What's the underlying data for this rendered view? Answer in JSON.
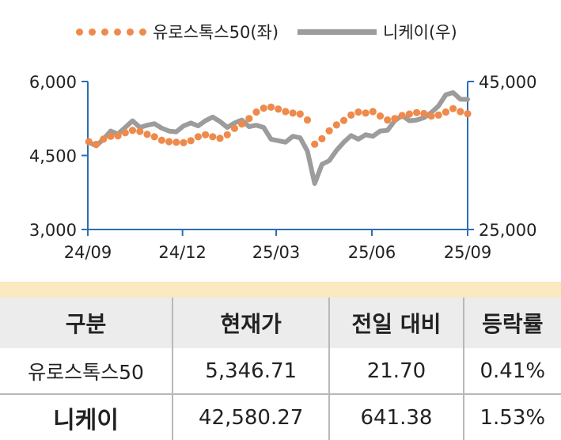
{
  "legend": {
    "series_1": "유로스톡스50(좌)",
    "series_2": "니케이(우)"
  },
  "colors": {
    "eurostoxx": "#ee8a4b",
    "nikkei": "#9c9c9c",
    "axis": "#2e6db4",
    "table_header_bg": "#ececec",
    "table_band": "#fbe9bf"
  },
  "chart_data": {
    "type": "line",
    "x_ticks": [
      "24/09",
      "24/12",
      "25/03",
      "25/06",
      "25/09"
    ],
    "y_left": {
      "ticks": [
        "3,000",
        "4,500",
        "6,000"
      ],
      "range": [
        3000,
        6000
      ]
    },
    "y_right": {
      "ticks": [
        "25,000",
        "45,000"
      ],
      "range": [
        25000,
        45000
      ]
    },
    "series": [
      {
        "name": "유로스톡스50(좌)",
        "axis": "left",
        "style": "dotted",
        "points": [
          [
            "24/09/02",
            4780
          ],
          [
            "24/09/09",
            4725
          ],
          [
            "24/09/16",
            4830
          ],
          [
            "24/09/23",
            4890
          ],
          [
            "24/09/30",
            4900
          ],
          [
            "24/10/07",
            4960
          ],
          [
            "24/10/14",
            5010
          ],
          [
            "24/10/21",
            4990
          ],
          [
            "24/10/28",
            4930
          ],
          [
            "24/11/04",
            4880
          ],
          [
            "24/11/11",
            4810
          ],
          [
            "24/11/18",
            4780
          ],
          [
            "24/11/25",
            4770
          ],
          [
            "24/12/02",
            4760
          ],
          [
            "24/12/09",
            4800
          ],
          [
            "24/12/16",
            4880
          ],
          [
            "24/12/23",
            4920
          ],
          [
            "24/12/30",
            4880
          ],
          [
            "25/01/06",
            4850
          ],
          [
            "25/01/13",
            4920
          ],
          [
            "25/01/20",
            5050
          ],
          [
            "25/01/27",
            5140
          ],
          [
            "25/02/03",
            5250
          ],
          [
            "25/02/10",
            5380
          ],
          [
            "25/02/17",
            5460
          ],
          [
            "25/02/24",
            5480
          ],
          [
            "25/03/03",
            5440
          ],
          [
            "25/03/10",
            5390
          ],
          [
            "25/03/17",
            5360
          ],
          [
            "25/03/24",
            5340
          ],
          [
            "25/03/31",
            5220
          ],
          [
            "25/04/07",
            4730
          ],
          [
            "25/04/14",
            4840
          ],
          [
            "25/04/21",
            5000
          ],
          [
            "25/04/28",
            5120
          ],
          [
            "25/05/05",
            5210
          ],
          [
            "25/05/12",
            5320
          ],
          [
            "25/05/19",
            5380
          ],
          [
            "25/05/26",
            5360
          ],
          [
            "25/06/02",
            5390
          ],
          [
            "25/06/09",
            5300
          ],
          [
            "25/06/16",
            5220
          ],
          [
            "25/06/23",
            5250
          ],
          [
            "25/06/30",
            5310
          ],
          [
            "25/07/07",
            5340
          ],
          [
            "25/07/14",
            5370
          ],
          [
            "25/07/21",
            5350
          ],
          [
            "25/07/28",
            5300
          ],
          [
            "25/08/04",
            5320
          ],
          [
            "25/08/11",
            5380
          ],
          [
            "25/08/18",
            5450
          ],
          [
            "25/08/25",
            5390
          ],
          [
            "25/09/01",
            5346.71
          ]
        ]
      },
      {
        "name": "니케이(우)",
        "axis": "right",
        "style": "line",
        "points": [
          [
            "24/09/02",
            36800
          ],
          [
            "24/09/09",
            36300
          ],
          [
            "24/09/16",
            37200
          ],
          [
            "24/09/23",
            38300
          ],
          [
            "24/09/30",
            37900
          ],
          [
            "24/10/07",
            38800
          ],
          [
            "24/10/14",
            39700
          ],
          [
            "24/10/21",
            38800
          ],
          [
            "24/10/28",
            39100
          ],
          [
            "24/11/04",
            39300
          ],
          [
            "24/11/11",
            38700
          ],
          [
            "24/11/18",
            38300
          ],
          [
            "24/11/25",
            38200
          ],
          [
            "24/12/02",
            39000
          ],
          [
            "24/12/09",
            39400
          ],
          [
            "24/12/16",
            39000
          ],
          [
            "24/12/23",
            39700
          ],
          [
            "24/12/30",
            40200
          ],
          [
            "25/01/06",
            39600
          ],
          [
            "25/01/13",
            38800
          ],
          [
            "25/01/20",
            39400
          ],
          [
            "25/01/27",
            39800
          ],
          [
            "25/02/03",
            38900
          ],
          [
            "25/02/10",
            39100
          ],
          [
            "25/02/17",
            38800
          ],
          [
            "25/02/24",
            37200
          ],
          [
            "25/03/03",
            37000
          ],
          [
            "25/03/10",
            36800
          ],
          [
            "25/03/17",
            37600
          ],
          [
            "25/03/24",
            37400
          ],
          [
            "25/03/31",
            35600
          ],
          [
            "25/04/07",
            31200
          ],
          [
            "25/04/14",
            33800
          ],
          [
            "25/04/21",
            34300
          ],
          [
            "25/04/28",
            35700
          ],
          [
            "25/05/05",
            36800
          ],
          [
            "25/05/12",
            37700
          ],
          [
            "25/05/19",
            37200
          ],
          [
            "25/05/26",
            37800
          ],
          [
            "25/06/02",
            37600
          ],
          [
            "25/06/09",
            38300
          ],
          [
            "25/06/16",
            38400
          ],
          [
            "25/06/23",
            39700
          ],
          [
            "25/06/30",
            40400
          ],
          [
            "25/07/07",
            39700
          ],
          [
            "25/07/14",
            39800
          ],
          [
            "25/07/21",
            40100
          ],
          [
            "25/07/28",
            40800
          ],
          [
            "25/08/04",
            41700
          ],
          [
            "25/08/11",
            43200
          ],
          [
            "25/08/18",
            43500
          ],
          [
            "25/08/25",
            42600
          ],
          [
            "25/09/01",
            42580.27
          ]
        ]
      }
    ]
  },
  "table": {
    "headers": [
      "구분",
      "현재가",
      "전일 대비",
      "등락률"
    ],
    "rows": [
      [
        "유로스톡스50",
        "5,346.71",
        "21.70",
        "0.41%"
      ],
      [
        "니케이",
        "42,580.27",
        "641.38",
        "1.53%"
      ]
    ]
  }
}
